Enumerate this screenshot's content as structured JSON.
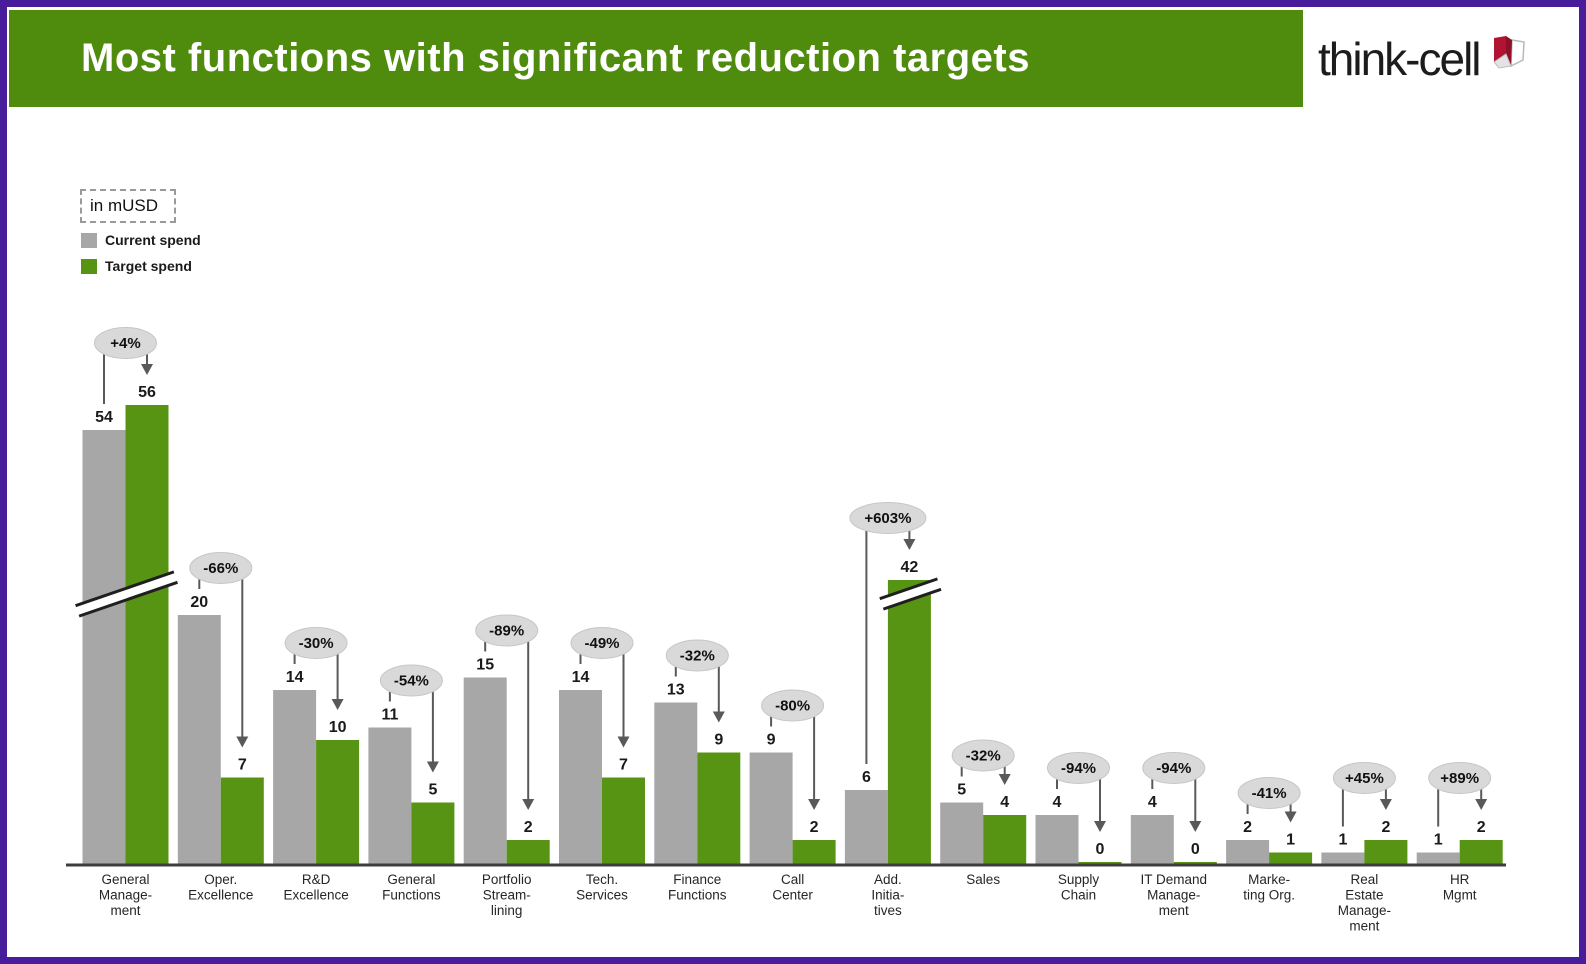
{
  "page": {
    "border_color": "#471d9b",
    "background": "#ffffff"
  },
  "header": {
    "title": "Most functions with significant reduction targets",
    "background_color": "#4f8c0e",
    "text_color": "#ffffff"
  },
  "logo": {
    "text": "think-cell",
    "icon": "think-cell-folded-page-icon",
    "icon_red": "#b11433"
  },
  "legend": {
    "unit_label": "in mUSD",
    "items": [
      {
        "label": "Current spend",
        "color": "#a7a7a7"
      },
      {
        "label": "Target spend",
        "color": "#579413"
      }
    ]
  },
  "chart_data": {
    "type": "bar",
    "title": "Most functions with significant reduction targets",
    "unit": "mUSD",
    "grid": false,
    "y_axis_visible": false,
    "value_labels": true,
    "legend_position": "top-left",
    "categories": [
      [
        "General",
        "Manage-",
        "ment"
      ],
      [
        "Oper.",
        "Excellence"
      ],
      [
        "R&D",
        "Excellence"
      ],
      [
        "General",
        "Functions"
      ],
      [
        "Portfolio",
        "Stream-",
        "lining"
      ],
      [
        "Tech.",
        "Services"
      ],
      [
        "Finance",
        "Functions"
      ],
      [
        "Call",
        "Center"
      ],
      [
        "Add.",
        "Initia-",
        "tives"
      ],
      [
        "Sales"
      ],
      [
        "Supply",
        "Chain"
      ],
      [
        "IT Demand",
        "Manage-",
        "ment"
      ],
      [
        "Marke-",
        "ting Org."
      ],
      [
        "Real",
        "Estate",
        "Manage-",
        "ment"
      ],
      [
        "HR",
        "Mgmt"
      ]
    ],
    "series": [
      {
        "name": "Current spend",
        "color": "#a7a7a7",
        "values": [
          54,
          20,
          14,
          11,
          15,
          14,
          13,
          9,
          6,
          5,
          4,
          4,
          2,
          1,
          1
        ]
      },
      {
        "name": "Target spend",
        "color": "#579413",
        "values": [
          56,
          7,
          10,
          5,
          2,
          7,
          9,
          2,
          42,
          4,
          0,
          0,
          1,
          2,
          2
        ]
      }
    ],
    "change_labels": [
      "+4%",
      "-66%",
      "-30%",
      "-54%",
      "-89%",
      "-49%",
      "-32%",
      "-80%",
      "+603%",
      "-32%",
      "-94%",
      "-94%",
      "-41%",
      "+45%",
      "+89%"
    ],
    "axis_breaks": [
      {
        "category_index": 0,
        "applies_to": "both"
      },
      {
        "category_index": 8,
        "applies_to": "target"
      }
    ],
    "colors": {
      "bubble_fill": "#d9d9d9",
      "bubble_stroke": "#c6c6c6",
      "annotation_line": "#595959",
      "axis_line": "#3d3d3d",
      "value_text": "#1a1a1a",
      "category_text": "#262626"
    }
  }
}
